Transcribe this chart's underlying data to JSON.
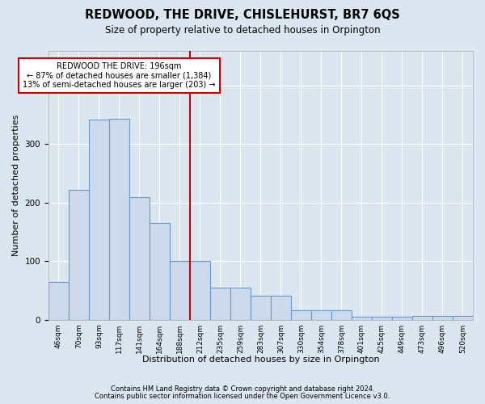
{
  "title": "REDWOOD, THE DRIVE, CHISLEHURST, BR7 6QS",
  "subtitle": "Size of property relative to detached houses in Orpington",
  "xlabel": "Distribution of detached houses by size in Orpington",
  "ylabel": "Number of detached properties",
  "bar_color": "#ccdaeb",
  "bar_edge_color": "#6699cc",
  "background_color": "#dce6f0",
  "grid_color": "#ffffff",
  "bins": [
    "46sqm",
    "70sqm",
    "93sqm",
    "117sqm",
    "141sqm",
    "164sqm",
    "188sqm",
    "212sqm",
    "235sqm",
    "259sqm",
    "283sqm",
    "307sqm",
    "330sqm",
    "354sqm",
    "378sqm",
    "401sqm",
    "425sqm",
    "449sqm",
    "473sqm",
    "496sqm",
    "520sqm"
  ],
  "values": [
    65,
    222,
    342,
    344,
    209,
    165,
    100,
    100,
    55,
    55,
    42,
    42,
    16,
    16,
    16,
    6,
    6,
    6,
    7,
    7,
    7
  ],
  "redline_bin_index": 6.5,
  "annotation_line1": "REDWOOD THE DRIVE: 196sqm",
  "annotation_line2": "← 87% of detached houses are smaller (1,384)",
  "annotation_line3": "13% of semi-detached houses are larger (203) →",
  "annotation_box_color": "#ffffff",
  "annotation_border_color": "#cc0000",
  "vline_color": "#cc0000",
  "ylim": [
    0,
    460
  ],
  "footnote1": "Contains HM Land Registry data © Crown copyright and database right 2024.",
  "footnote2": "Contains public sector information licensed under the Open Government Licence v3.0."
}
